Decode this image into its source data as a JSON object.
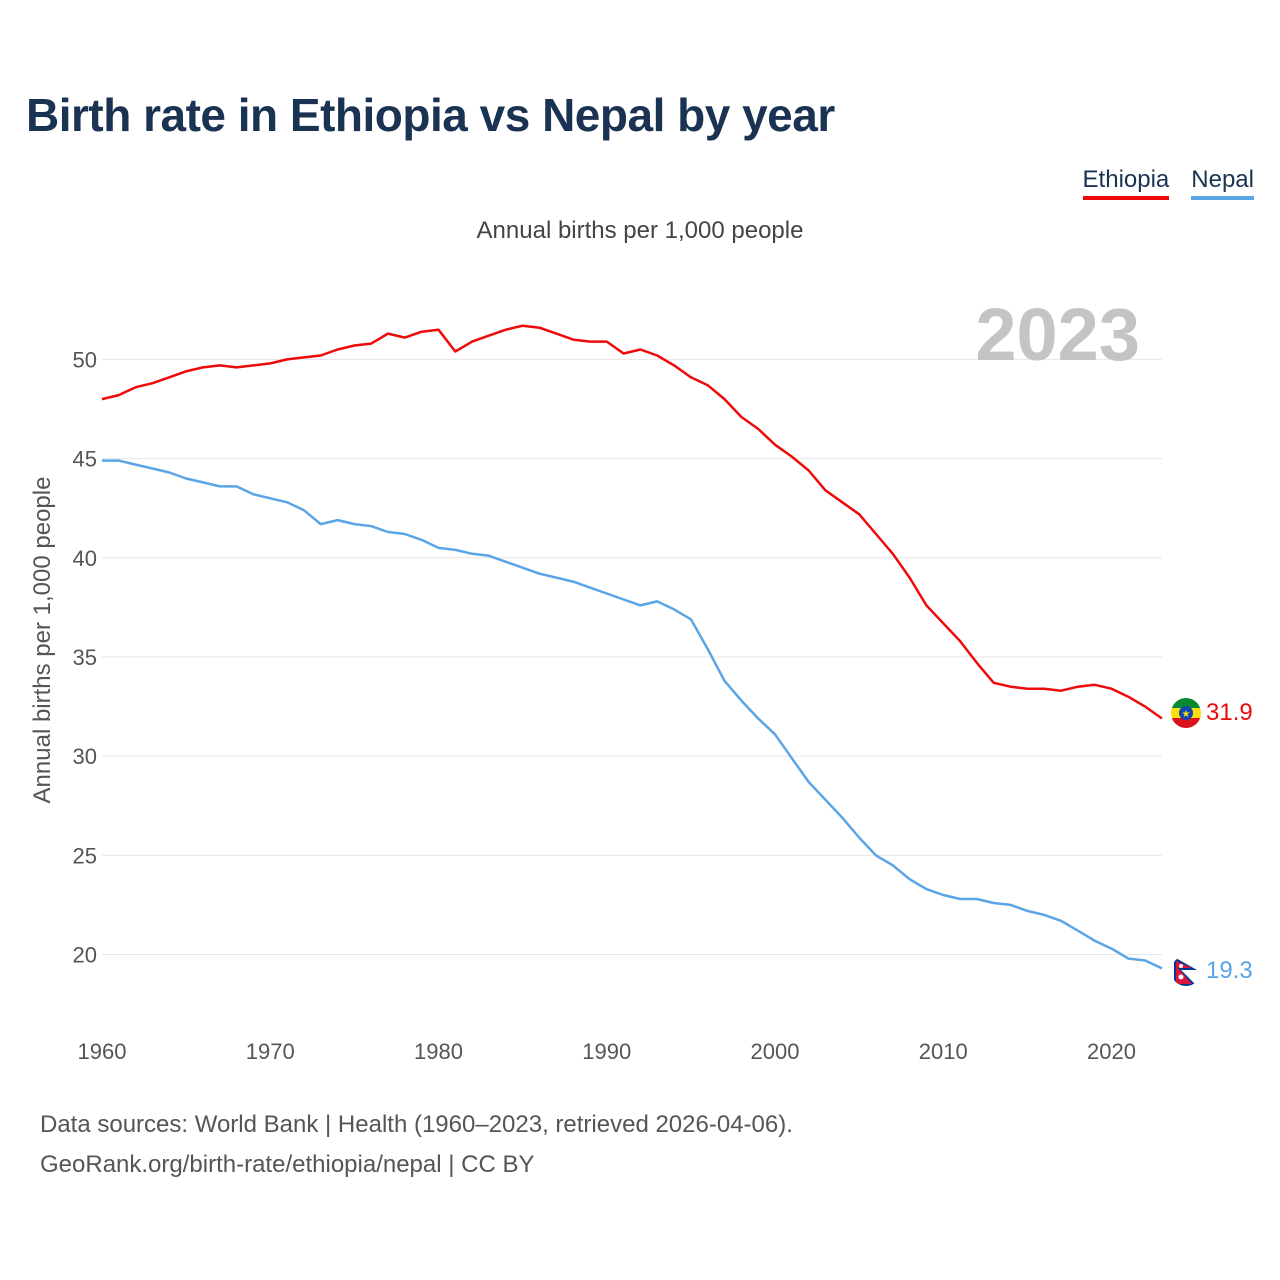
{
  "title": "Birth rate in Ethiopia vs Nepal by year",
  "subtitle": "Annual births per 1,000 people",
  "legend": [
    "Ethiopia",
    "Nepal"
  ],
  "year_watermark": "2023",
  "footer": {
    "line1": "Data sources: World Bank | Health (1960–2023, retrieved 2026-04-06).",
    "line2": "GeoRank.org/birth-rate/ethiopia/nepal | CC BY"
  },
  "colors": {
    "ethiopia": "#ee0a0a",
    "nepal": "#5aa5e6",
    "title": "#1b3352",
    "grid": "#e6e6e6"
  },
  "chart_data": {
    "type": "line",
    "title": "Birth rate in Ethiopia vs Nepal by year",
    "xlabel": "",
    "ylabel": "Annual births per 1,000 people",
    "xlim": [
      1960,
      2023
    ],
    "ylim": [
      16.7,
      53.5
    ],
    "xticks": [
      1960,
      1970,
      1980,
      1990,
      2000,
      2010,
      2020
    ],
    "yticks": [
      20,
      25,
      30,
      35,
      40,
      45,
      50
    ],
    "grid": true,
    "legend_position": "top-right",
    "x": [
      1960,
      1961,
      1962,
      1963,
      1964,
      1965,
      1966,
      1967,
      1968,
      1969,
      1970,
      1971,
      1972,
      1973,
      1974,
      1975,
      1976,
      1977,
      1978,
      1979,
      1980,
      1981,
      1982,
      1983,
      1984,
      1985,
      1986,
      1987,
      1988,
      1989,
      1990,
      1991,
      1992,
      1993,
      1994,
      1995,
      1996,
      1997,
      1998,
      1999,
      2000,
      2001,
      2002,
      2003,
      2004,
      2005,
      2006,
      2007,
      2008,
      2009,
      2010,
      2011,
      2012,
      2013,
      2014,
      2015,
      2016,
      2017,
      2018,
      2019,
      2020,
      2021,
      2022,
      2023
    ],
    "series": [
      {
        "name": "Ethiopia",
        "end_label": "31.9",
        "values": [
          48.0,
          48.2,
          48.6,
          48.8,
          49.1,
          49.4,
          49.6,
          49.7,
          49.6,
          49.7,
          49.8,
          50.0,
          50.1,
          50.2,
          50.5,
          50.7,
          50.8,
          51.3,
          51.1,
          51.4,
          51.5,
          50.4,
          50.9,
          51.2,
          51.5,
          51.7,
          51.6,
          51.3,
          51.0,
          50.9,
          50.9,
          50.3,
          50.5,
          50.2,
          49.7,
          49.1,
          48.7,
          48.0,
          47.1,
          46.5,
          45.7,
          45.1,
          44.4,
          43.4,
          42.8,
          42.2,
          41.2,
          40.2,
          39.0,
          37.6,
          36.7,
          35.8,
          34.7,
          33.7,
          33.5,
          33.4,
          33.4,
          33.3,
          33.5,
          33.6,
          33.4,
          33.0,
          32.5,
          31.9
        ]
      },
      {
        "name": "Nepal",
        "end_label": "19.3",
        "values": [
          44.9,
          44.9,
          44.7,
          44.5,
          44.3,
          44.0,
          43.8,
          43.6,
          43.6,
          43.2,
          43.0,
          42.8,
          42.4,
          41.7,
          41.9,
          41.7,
          41.6,
          41.3,
          41.2,
          40.9,
          40.5,
          40.4,
          40.2,
          40.1,
          39.8,
          39.5,
          39.2,
          39.0,
          38.8,
          38.5,
          38.2,
          37.9,
          37.6,
          37.8,
          37.4,
          36.9,
          35.4,
          33.8,
          32.8,
          31.9,
          31.1,
          29.9,
          28.7,
          27.8,
          26.9,
          25.9,
          25.0,
          24.5,
          23.8,
          23.3,
          23.0,
          22.8,
          22.8,
          22.6,
          22.5,
          22.2,
          22.0,
          21.7,
          21.2,
          20.7,
          20.3,
          19.8,
          19.7,
          19.3
        ]
      }
    ]
  }
}
